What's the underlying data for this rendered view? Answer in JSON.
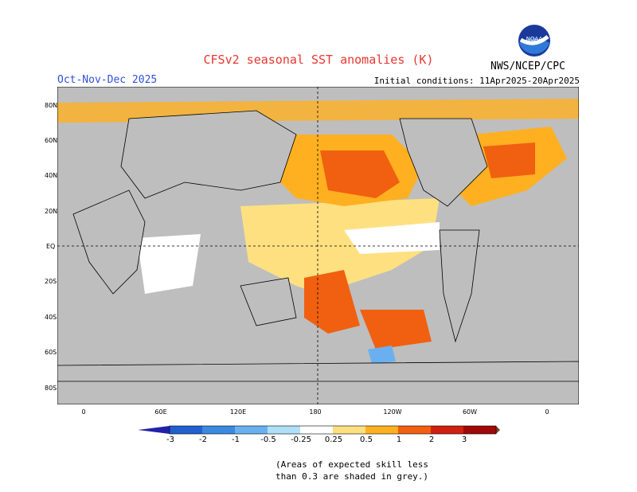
{
  "title": "CFSv2 seasonal SST anomalies (K)",
  "season": "Oct-Nov-Dec 2025",
  "initial_conditions": "Initial conditions: 11Apr2025-20Apr2025",
  "agency": "NWS/NCEP/CPC",
  "logo_text": "NOAA",
  "lat_labels": [
    "80N",
    "60N",
    "40N",
    "20N",
    "EQ",
    "20S",
    "40S",
    "60S",
    "80S"
  ],
  "lon_labels": [
    "0",
    "60E",
    "120E",
    "180",
    "120W",
    "60W",
    "0"
  ],
  "colorbar": {
    "labels": [
      "-3",
      "-2",
      "-1",
      "-0.5",
      "-0.25",
      "0.25",
      "0.5",
      "1",
      "2",
      "3"
    ],
    "colors": [
      "#2222a8",
      "#2060d0",
      "#3a8ae0",
      "#6ab0f0",
      "#b0e0f8",
      "#ffffff",
      "#ffe080",
      "#ffb020",
      "#f06010",
      "#d02010",
      "#a00808",
      "#804030"
    ]
  },
  "colors": {
    "ocean_grey": "#bebebe",
    "land_grey": "#bebebe",
    "title_red": "#e8362f",
    "season_blue": "#3050d8"
  },
  "note_line1": "(Areas of expected skill less",
  "note_line2": "than 0.3 are shaded in grey.)"
}
